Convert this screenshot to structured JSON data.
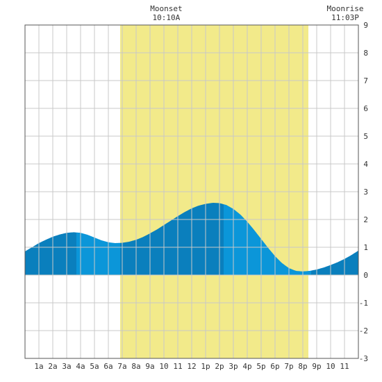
{
  "chart_data": {
    "type": "area",
    "x_ticks": [
      "1a",
      "2a",
      "3a",
      "4a",
      "5a",
      "6a",
      "7a",
      "8a",
      "9a",
      "10",
      "11",
      "12",
      "1p",
      "2p",
      "3p",
      "4p",
      "5p",
      "6p",
      "7p",
      "8p",
      "9p",
      "10",
      "11"
    ],
    "y_ticks": [
      "9",
      "8",
      "7",
      "6",
      "5",
      "4",
      "3",
      "2",
      "1",
      "0",
      "-1",
      "-2",
      "-3"
    ],
    "ylim": [
      -3,
      9
    ],
    "xlim_hours": [
      0,
      24
    ],
    "daylight_hours": [
      6.85,
      20.4
    ],
    "tide_curve": {
      "x_hours": [
        0,
        0.5,
        1,
        1.5,
        2,
        2.5,
        3,
        3.5,
        4,
        4.5,
        5,
        5.5,
        6,
        6.5,
        7,
        7.5,
        8,
        8.5,
        9,
        9.5,
        10,
        10.5,
        11,
        11.5,
        12,
        12.5,
        13,
        13.5,
        14,
        14.5,
        15,
        15.5,
        16,
        16.5,
        17,
        17.5,
        18,
        18.5,
        19,
        19.5,
        20,
        20.5,
        21,
        21.5,
        22,
        22.5,
        23,
        23.5,
        24
      ],
      "y_values": [
        0.85,
        1.0,
        1.15,
        1.27,
        1.38,
        1.46,
        1.52,
        1.54,
        1.52,
        1.45,
        1.35,
        1.25,
        1.18,
        1.15,
        1.16,
        1.2,
        1.27,
        1.37,
        1.5,
        1.64,
        1.8,
        1.96,
        2.12,
        2.27,
        2.4,
        2.5,
        2.56,
        2.6,
        2.59,
        2.52,
        2.38,
        2.18,
        1.92,
        1.62,
        1.3,
        0.98,
        0.68,
        0.43,
        0.25,
        0.15,
        0.13,
        0.15,
        0.2,
        0.27,
        0.36,
        0.46,
        0.58,
        0.72,
        0.88
      ]
    },
    "tide_bands": [
      {
        "from": 0,
        "to": 3.7,
        "shade": "dark"
      },
      {
        "from": 3.7,
        "to": 6.85,
        "shade": "light"
      },
      {
        "from": 6.85,
        "to": 14.3,
        "shade": "dark"
      },
      {
        "from": 14.3,
        "to": 20.6,
        "shade": "light"
      },
      {
        "from": 20.6,
        "to": 24,
        "shade": "dark"
      }
    ],
    "annotations": [
      {
        "label": "Moonset",
        "time": "10:10A",
        "hour": 10.17
      },
      {
        "label": "Moonrise",
        "time": "11:03P",
        "hour": 23.05
      }
    ],
    "grid": true,
    "colors": {
      "daylight": "#f2ea8a",
      "water_dark": "#0a7fbd",
      "water_light": "#0b96d9",
      "grid": "#c8c8c8",
      "axis": "#555555"
    }
  }
}
